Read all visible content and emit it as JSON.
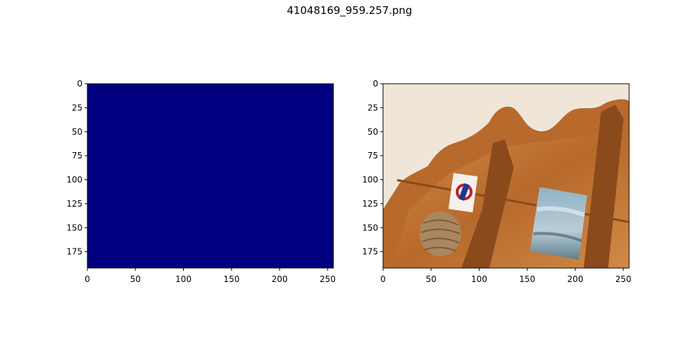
{
  "figure": {
    "title": "41048169_959.257.png"
  },
  "colors": {
    "mask_fill": "#000080",
    "wall": "#efe6d8",
    "wood_dark": "#8a4a1c",
    "wood_mid": "#b8692c",
    "wood_light": "#d08a47",
    "painting_sky": "#8fb3c4",
    "painting_sea": "#5e7f8c",
    "sign_red": "#c0202a",
    "sign_blue": "#1f3a8a",
    "rope": "#a9875f"
  },
  "chart_data": [
    {
      "type": "heatmap",
      "title": "",
      "subject": "uniform mask (all zero)",
      "x": {
        "ticks": [
          0,
          50,
          100,
          150,
          200,
          250
        ],
        "lim": [
          0,
          256
        ]
      },
      "y": {
        "ticks": [
          0,
          25,
          50,
          75,
          100,
          125,
          150,
          175
        ],
        "lim": [
          192,
          0
        ]
      },
      "values": "constant"
    },
    {
      "type": "image",
      "title": "",
      "subject": "photo of a wooden wall shelf with a small painting, a rope coil and a round sign",
      "x": {
        "ticks": [
          0,
          50,
          100,
          150,
          200,
          250
        ],
        "lim": [
          0,
          256
        ]
      },
      "y": {
        "ticks": [
          0,
          25,
          50,
          75,
          100,
          125,
          150,
          175
        ],
        "lim": [
          192,
          0
        ]
      }
    }
  ]
}
